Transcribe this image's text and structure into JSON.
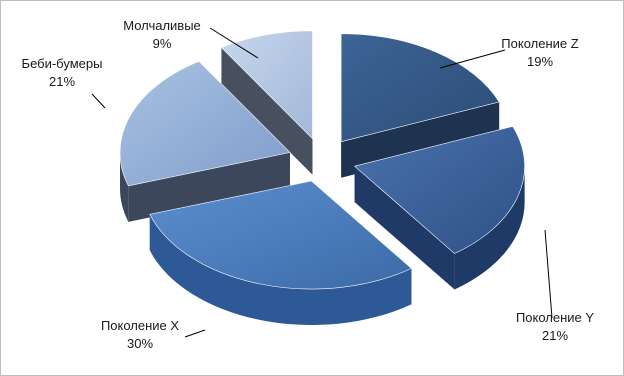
{
  "chart_data": {
    "type": "pie",
    "style": "3d-exploded",
    "slices": [
      {
        "label": "Поколение Z",
        "value": 19,
        "value_label": "19%",
        "color": "#385d8a"
      },
      {
        "label": "Поколение Y",
        "value": 21,
        "value_label": "21%",
        "color": "#4065a0"
      },
      {
        "label": "Поколение X",
        "value": 30,
        "value_label": "30%",
        "color": "#4f81bd"
      },
      {
        "label": "Беби-бумеры",
        "value": 21,
        "value_label": "21%",
        "color": "#95b3d7"
      },
      {
        "label": "Молчаливые",
        "value": 9,
        "value_label": "9%",
        "color": "#b9cde5"
      }
    ],
    "legend": "none",
    "data_labels": "outside-with-leader-lines"
  }
}
